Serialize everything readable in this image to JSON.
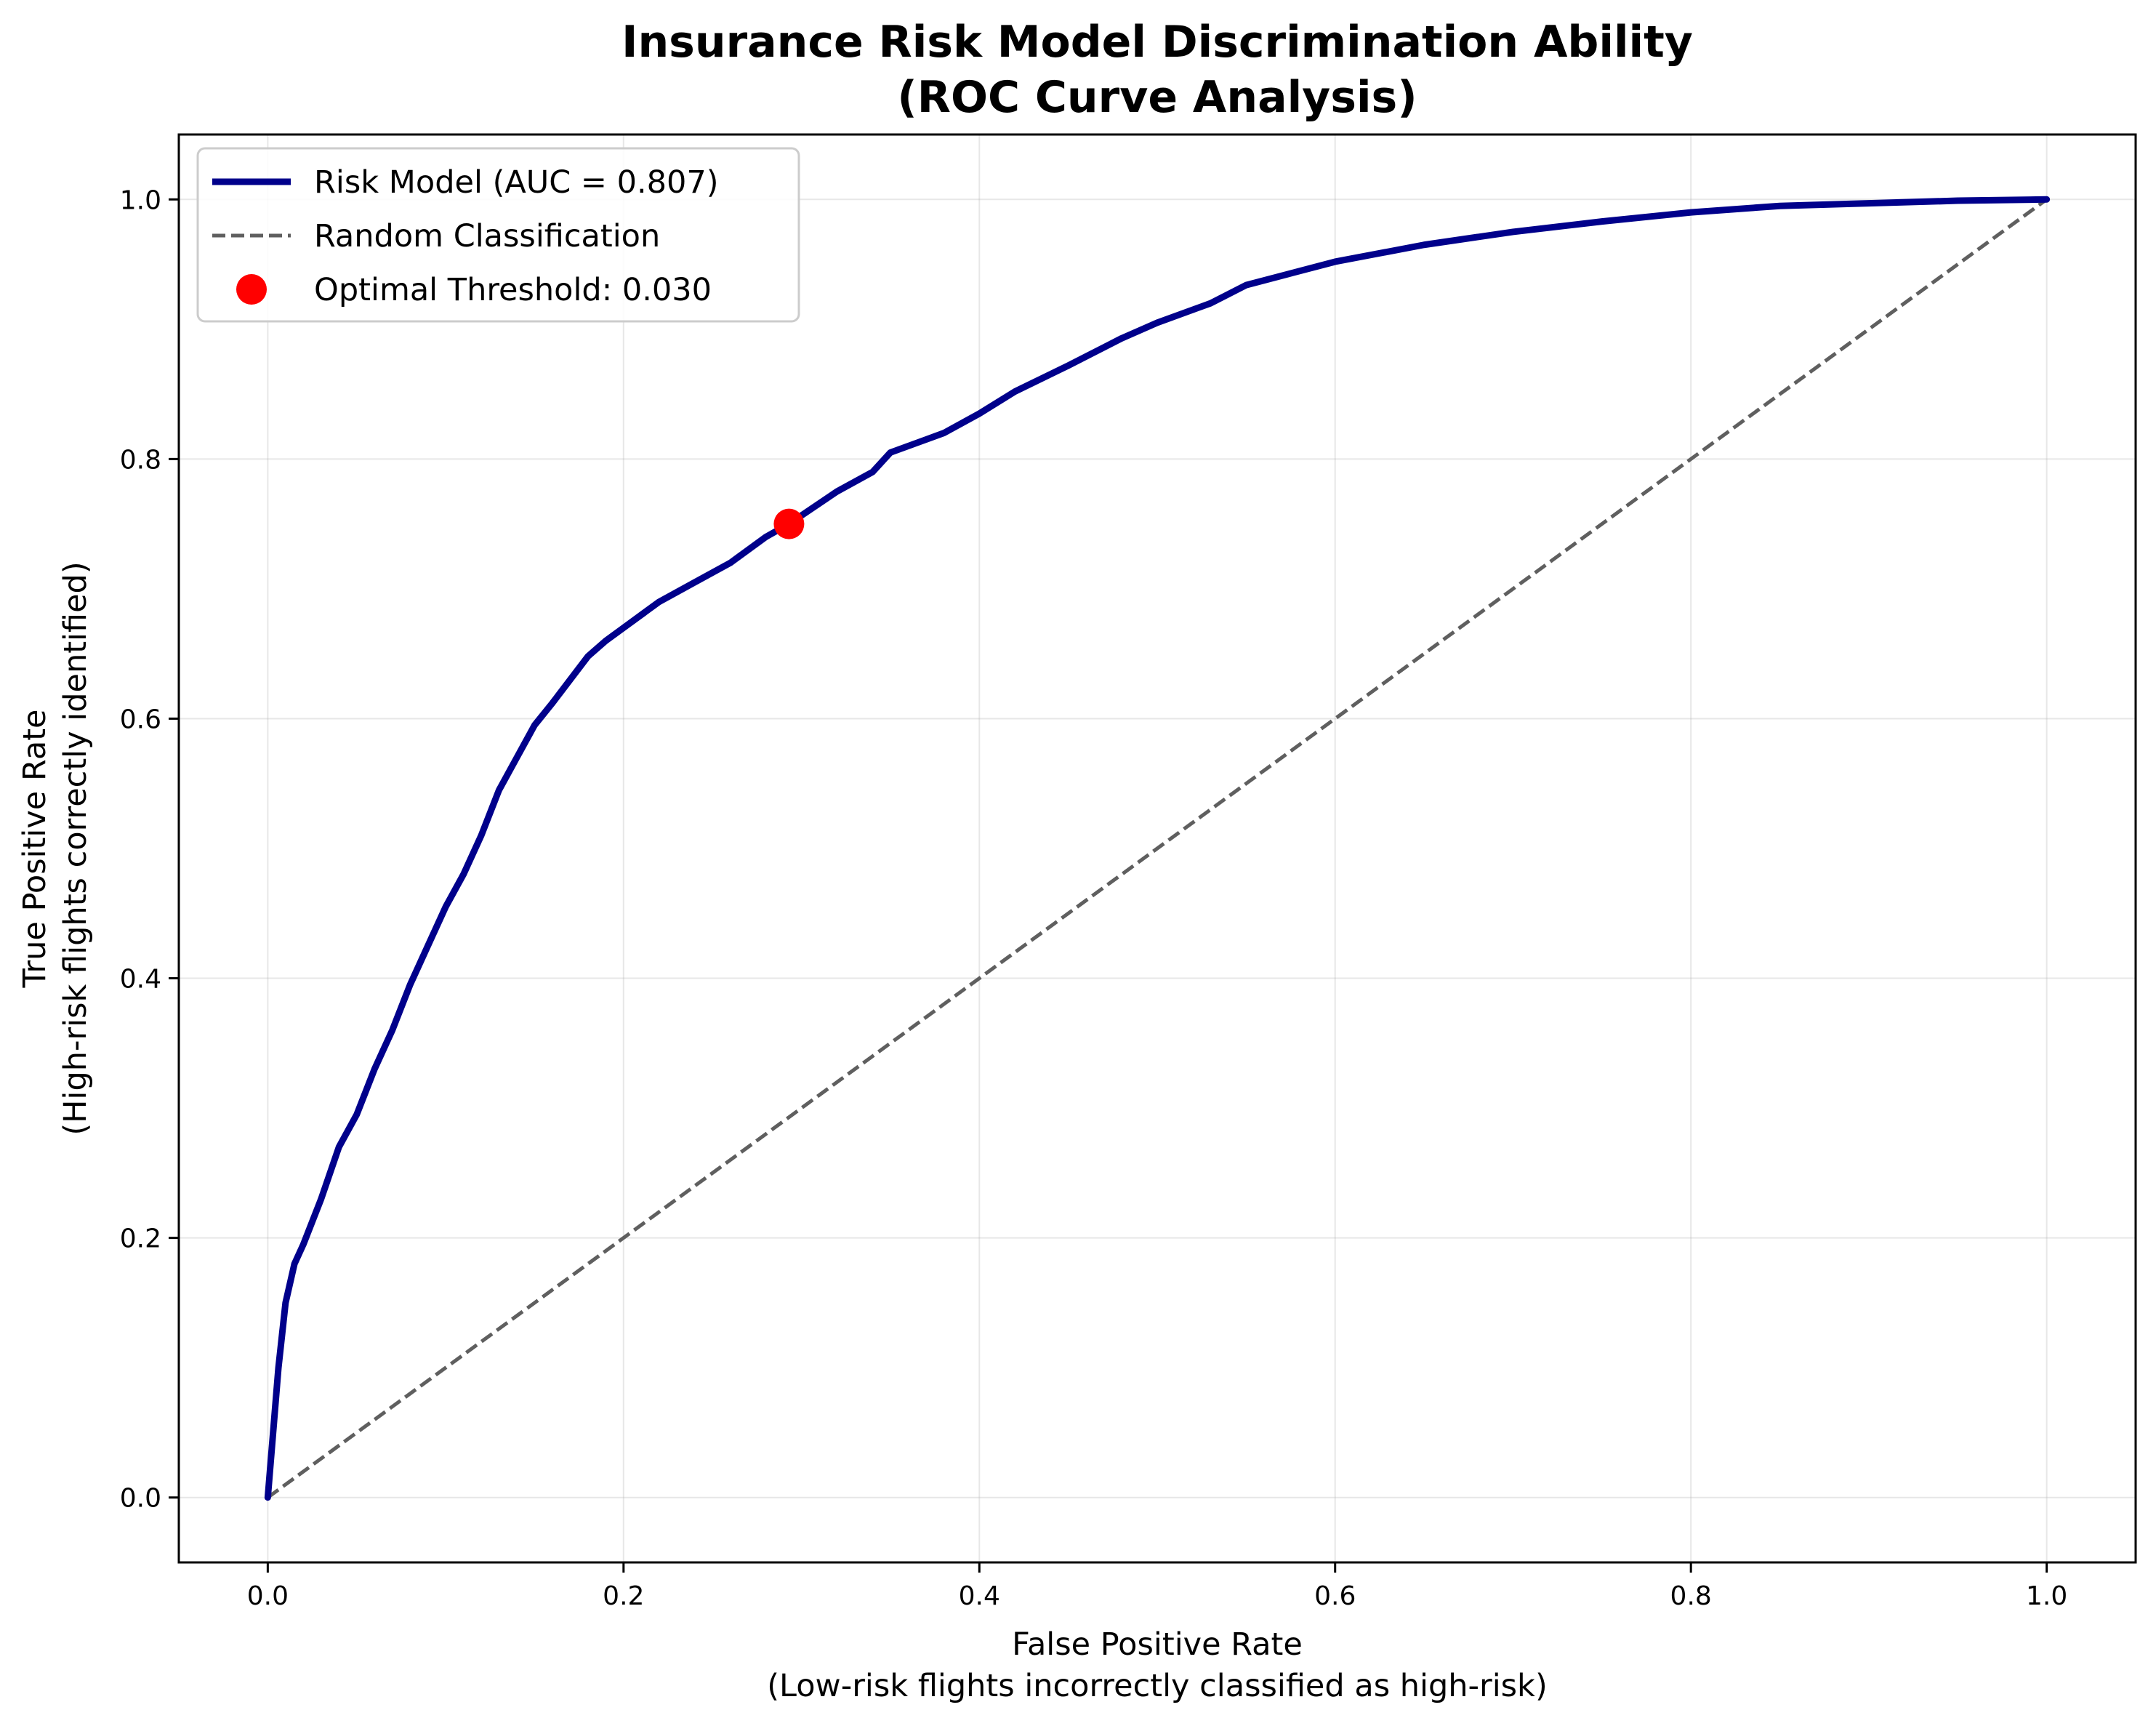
{
  "chart_data": {
    "type": "line",
    "title": "Insurance Risk Model Discrimination Ability",
    "subtitle": "(ROC Curve Analysis)",
    "xlabel": "False Positive Rate",
    "xlabel_sub": "(Low-risk flights incorrectly classified as high-risk)",
    "ylabel": "True Positive Rate",
    "ylabel_sub": "(High-risk flights correctly identified)",
    "xlim": [
      -0.05,
      1.05
    ],
    "ylim": [
      -0.05,
      1.05
    ],
    "grid": true,
    "legend_position": "upper-left",
    "x_ticks": [
      0.0,
      0.2,
      0.4,
      0.6,
      0.8,
      1.0
    ],
    "y_ticks": [
      0.0,
      0.2,
      0.4,
      0.6,
      0.8,
      1.0
    ],
    "x_tick_labels": [
      "0.0",
      "0.2",
      "0.4",
      "0.6",
      "0.8",
      "1.0"
    ],
    "y_tick_labels": [
      "0.0",
      "0.2",
      "0.4",
      "0.6",
      "0.8",
      "1.0"
    ],
    "series": [
      {
        "name": "Risk Model (AUC = 0.807)",
        "style": "solid",
        "color": "#00008b",
        "x": [
          0.0,
          0.003,
          0.006,
          0.01,
          0.015,
          0.02,
          0.03,
          0.04,
          0.05,
          0.06,
          0.07,
          0.08,
          0.09,
          0.1,
          0.11,
          0.12,
          0.13,
          0.14,
          0.15,
          0.16,
          0.17,
          0.18,
          0.19,
          0.2,
          0.22,
          0.24,
          0.26,
          0.28,
          0.293,
          0.32,
          0.34,
          0.35,
          0.38,
          0.4,
          0.42,
          0.45,
          0.48,
          0.5,
          0.53,
          0.55,
          0.6,
          0.65,
          0.7,
          0.75,
          0.8,
          0.85,
          0.9,
          0.95,
          1.0
        ],
        "y": [
          0.0,
          0.05,
          0.1,
          0.15,
          0.18,
          0.195,
          0.23,
          0.27,
          0.295,
          0.33,
          0.36,
          0.395,
          0.425,
          0.455,
          0.48,
          0.51,
          0.545,
          0.57,
          0.595,
          0.612,
          0.63,
          0.648,
          0.66,
          0.67,
          0.69,
          0.705,
          0.72,
          0.74,
          0.75,
          0.775,
          0.79,
          0.805,
          0.82,
          0.835,
          0.852,
          0.872,
          0.893,
          0.905,
          0.92,
          0.934,
          0.952,
          0.965,
          0.975,
          0.983,
          0.99,
          0.995,
          0.997,
          0.999,
          1.0
        ]
      },
      {
        "name": "Random Classification",
        "style": "dashed",
        "color": "#5f5f5f",
        "x": [
          0.0,
          1.0
        ],
        "y": [
          0.0,
          1.0
        ]
      }
    ],
    "markers": [
      {
        "name": "Optimal Threshold: 0.030",
        "x": 0.293,
        "y": 0.75,
        "color": "#ff0000"
      }
    ]
  }
}
